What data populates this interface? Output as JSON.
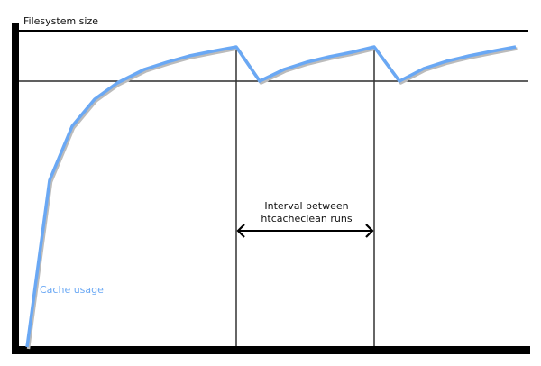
{
  "diagram": {
    "type": "cache-usage-over-time",
    "y_axis_label": "Filesystem size",
    "curve_label": "Cache usage",
    "interval_label_line1": "Interval between",
    "interval_label_line2": "htcacheclean runs",
    "curve_color": "#6aa8f4"
  }
}
